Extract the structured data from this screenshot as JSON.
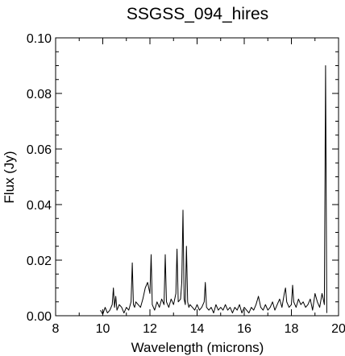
{
  "chart_data": {
    "type": "line",
    "title": "SSGSS_094_hires",
    "xlabel": "Wavelength (microns)",
    "ylabel": "Flux (Jy)",
    "xlim": [
      8,
      20
    ],
    "ylim": [
      0.0,
      0.1
    ],
    "xticks": [
      8,
      10,
      12,
      14,
      16,
      18,
      20
    ],
    "xtick_labels": [
      "8",
      "10",
      "12",
      "14",
      "16",
      "18",
      "20"
    ],
    "yticks": [
      0.0,
      0.02,
      0.04,
      0.06,
      0.08,
      0.1
    ],
    "ytick_labels": [
      "0.00",
      "0.02",
      "0.04",
      "0.06",
      "0.08",
      "0.10"
    ],
    "grid": false,
    "series": [
      {
        "color": "#000000",
        "x": [
          9.9,
          10.0,
          10.1,
          10.2,
          10.3,
          10.4,
          10.45,
          10.5,
          10.55,
          10.6,
          10.7,
          10.8,
          10.9,
          11.0,
          11.1,
          11.2,
          11.25,
          11.3,
          11.35,
          11.4,
          11.5,
          11.6,
          11.7,
          11.8,
          11.9,
          12.0,
          12.05,
          12.1,
          12.2,
          12.3,
          12.4,
          12.5,
          12.6,
          12.65,
          12.7,
          12.8,
          12.9,
          13.0,
          13.1,
          13.15,
          13.2,
          13.3,
          13.35,
          13.4,
          13.45,
          13.5,
          13.55,
          13.6,
          13.65,
          13.7,
          13.8,
          13.9,
          14.0,
          14.1,
          14.2,
          14.3,
          14.35,
          14.4,
          14.5,
          14.6,
          14.7,
          14.8,
          14.9,
          15.0,
          15.1,
          15.2,
          15.3,
          15.4,
          15.5,
          15.6,
          15.7,
          15.8,
          15.9,
          16.0,
          16.1,
          16.2,
          16.3,
          16.4,
          16.5,
          16.6,
          16.7,
          16.8,
          16.9,
          17.0,
          17.1,
          17.2,
          17.3,
          17.4,
          17.5,
          17.6,
          17.7,
          17.75,
          17.8,
          17.9,
          18.0,
          18.05,
          18.1,
          18.2,
          18.3,
          18.4,
          18.5,
          18.6,
          18.7,
          18.8,
          18.9,
          19.0,
          19.1,
          19.2,
          19.3,
          19.35,
          19.4,
          19.45,
          19.5
        ],
        "y": [
          0.002,
          0.0005,
          0.003,
          0.001,
          0.002,
          0.004,
          0.01,
          0.003,
          0.007,
          0.002,
          0.004,
          0.003,
          0.001,
          0.003,
          0.002,
          0.005,
          0.019,
          0.004,
          0.003,
          0.005,
          0.004,
          0.003,
          0.006,
          0.01,
          0.012,
          0.008,
          0.022,
          0.004,
          0.002,
          0.005,
          0.003,
          0.006,
          0.004,
          0.022,
          0.005,
          0.003,
          0.006,
          0.004,
          0.008,
          0.024,
          0.005,
          0.006,
          0.012,
          0.038,
          0.006,
          0.004,
          0.025,
          0.005,
          0.003,
          0.004,
          0.003,
          0.002,
          0.004,
          0.002,
          0.003,
          0.005,
          0.012,
          0.003,
          0.002,
          0.003,
          0.001,
          0.004,
          0.002,
          0.003,
          0.002,
          0.004,
          0.002,
          0.003,
          0.001,
          0.003,
          0.002,
          0.004,
          0.001,
          0.003,
          0.002,
          0.001,
          0.003,
          0.002,
          0.004,
          0.007,
          0.003,
          0.002,
          0.004,
          0.002,
          0.003,
          0.005,
          0.002,
          0.004,
          0.006,
          0.003,
          0.008,
          0.01,
          0.005,
          0.003,
          0.004,
          0.011,
          0.005,
          0.003,
          0.006,
          0.004,
          0.005,
          0.003,
          0.004,
          0.006,
          0.002,
          0.008,
          0.005,
          0.003,
          0.008,
          0.006,
          0.004,
          0.09,
          0.001
        ]
      }
    ]
  }
}
